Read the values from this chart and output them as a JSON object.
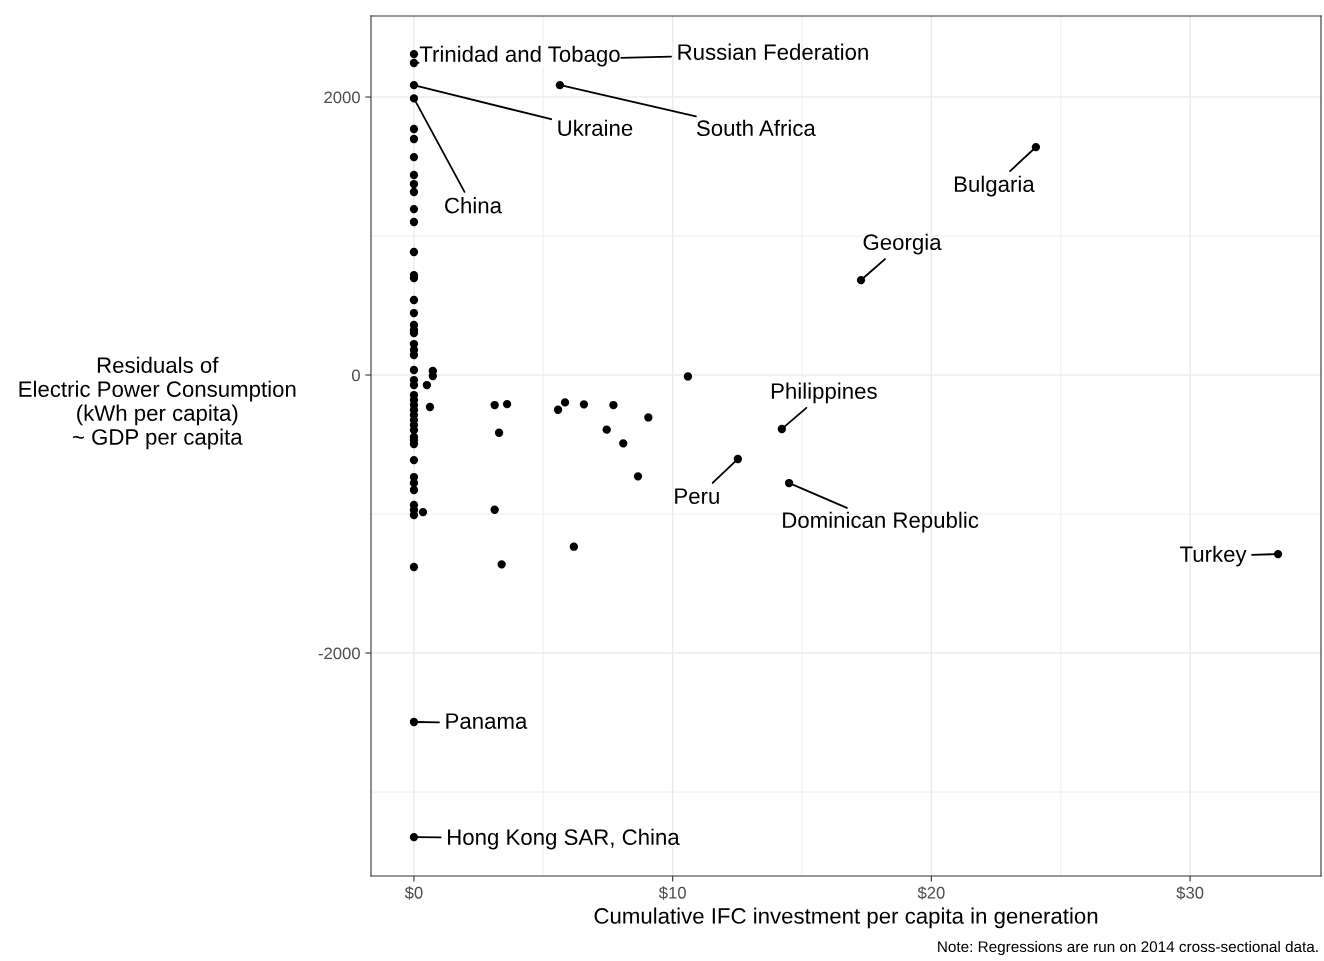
{
  "chart_data": {
    "type": "scatter",
    "xlabel": "Cumulative IFC investment per capita in generation",
    "ylabel": "Residuals of\nElectric Power Consumption\n(kWh per capita)\n~ GDP per capita",
    "x": [
      0,
      0,
      0,
      0,
      0,
      0,
      0,
      0,
      0,
      0,
      0,
      0,
      0,
      0,
      0,
      0,
      0,
      0,
      0,
      0,
      0,
      0,
      0,
      0,
      0,
      0,
      0,
      0,
      0,
      0,
      0,
      0,
      0,
      0,
      0,
      0,
      0,
      0,
      0,
      0,
      0,
      0,
      0,
      0,
      0,
      0,
      0,
      0.5,
      0.73,
      0.73,
      0.62,
      0.35,
      3.12,
      3.6,
      3.29,
      5.57,
      5.84,
      6.57,
      7.71,
      7.45,
      9.06,
      8.09,
      8.66,
      10.59,
      3.12,
      6.18,
      3.39,
      5.64,
      24.04,
      17.28,
      14.22,
      12.52,
      14.5,
      33.4
    ],
    "values": [
      2309,
      2245,
      2086,
      1990,
      1770,
      1698,
      1568,
      1439,
      1374,
      1317,
      1194,
      1101,
      885,
      719,
      698,
      540,
      446,
      360,
      324,
      302,
      223,
      180,
      144,
      36,
      -36,
      -72,
      -144,
      -180,
      -216,
      -252,
      -288,
      -324,
      -360,
      -396,
      -446,
      -468,
      -496,
      -612,
      -734,
      -777,
      -827,
      -935,
      -971,
      -1007,
      -1381,
      -2496,
      -3324,
      -72,
      29,
      -7,
      -230,
      -986,
      -216,
      -209,
      -415,
      -250,
      -197,
      -211,
      -216,
      -393,
      -305,
      -492,
      -729,
      -10,
      -969,
      -1235,
      -1362,
      2086,
      1640,
      683,
      -388,
      -604,
      -777,
      -1288
    ],
    "color": "#000000",
    "marker": "circle",
    "xlim": [
      -1.66,
      35.06
    ],
    "ylim": [
      -3604,
      2583
    ],
    "xticks": [
      {
        "value": 0,
        "label": "$0"
      },
      {
        "value": 10,
        "label": "$10"
      },
      {
        "value": 20,
        "label": "$20"
      },
      {
        "value": 30,
        "label": "$30"
      }
    ],
    "yticks": [
      {
        "value": -2000,
        "label": "-2000"
      },
      0,
      2000
    ],
    "grid": true,
    "annotations": [
      {
        "text": "Trinidad and Tobago",
        "x": 0,
        "y": 2309
      },
      {
        "text": "Russian Federation",
        "x": 0,
        "y": 2245
      },
      {
        "text": "Ukraine",
        "x": 0,
        "y": 2086
      },
      {
        "text": "China",
        "x": 0,
        "y": 1990
      },
      {
        "text": "South Africa",
        "x": 5.64,
        "y": 2086
      },
      {
        "text": "Bulgaria",
        "x": 24.04,
        "y": 1640
      },
      {
        "text": "Georgia",
        "x": 17.28,
        "y": 683
      },
      {
        "text": "Philippines",
        "x": 14.22,
        "y": -388
      },
      {
        "text": "Peru",
        "x": 12.52,
        "y": -604
      },
      {
        "text": "Dominican Republic",
        "x": 14.5,
        "y": -777
      },
      {
        "text": "Turkey",
        "x": 33.4,
        "y": -1288
      },
      {
        "text": "Panama",
        "x": 0,
        "y": -2496
      },
      {
        "text": "Hong Kong SAR, China",
        "x": 0,
        "y": -3324
      },
      "Note: Regressions are run on 2014 cross-sectional data."
    ]
  }
}
